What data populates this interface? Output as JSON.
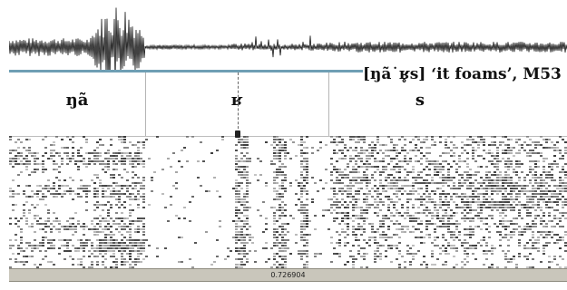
{
  "caption": "[ŋã˙ʁ̥s] ‘it foams’, M53",
  "segments": [
    {
      "label": "ŋã",
      "start": 0.0,
      "end": 0.15
    },
    {
      "label": "ʁ",
      "start": 0.15,
      "end": 0.352
    },
    {
      "label": "s",
      "start": 0.352,
      "end": 1.0
    }
  ],
  "cursor_time": "0.726904",
  "colors": {
    "baseline": "#6f9fb4",
    "waveform": "#111111",
    "spectrogram_ink": "#1a1a1a",
    "timebar": "#c9c6bb"
  }
}
